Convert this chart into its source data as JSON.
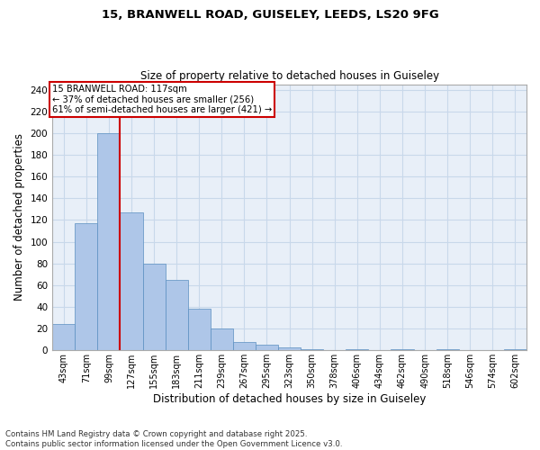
{
  "title_line1": "15, BRANWELL ROAD, GUISELEY, LEEDS, LS20 9FG",
  "title_line2": "Size of property relative to detached houses in Guiseley",
  "xlabel": "Distribution of detached houses by size in Guiseley",
  "ylabel": "Number of detached properties",
  "categories": [
    "43sqm",
    "71sqm",
    "99sqm",
    "127sqm",
    "155sqm",
    "183sqm",
    "211sqm",
    "239sqm",
    "267sqm",
    "295sqm",
    "323sqm",
    "350sqm",
    "378sqm",
    "406sqm",
    "434sqm",
    "462sqm",
    "490sqm",
    "518sqm",
    "546sqm",
    "574sqm",
    "602sqm"
  ],
  "values": [
    24,
    117,
    200,
    127,
    80,
    65,
    38,
    20,
    8,
    5,
    3,
    1,
    0,
    1,
    0,
    1,
    0,
    1,
    0,
    0,
    1
  ],
  "bar_color": "#aec6e8",
  "bar_edge_color": "#5a8fc0",
  "grid_color": "#c8d8ea",
  "background_color": "#e8eff8",
  "ylim": [
    0,
    245
  ],
  "yticks": [
    0,
    20,
    40,
    60,
    80,
    100,
    120,
    140,
    160,
    180,
    200,
    220,
    240
  ],
  "property_bin_index": 2,
  "annotation_text_line1": "15 BRANWELL ROAD: 117sqm",
  "annotation_text_line2": "← 37% of detached houses are smaller (256)",
  "annotation_text_line3": "61% of semi-detached houses are larger (421) →",
  "annotation_box_color": "#cc0000",
  "vline_color": "#cc0000",
  "footer_line1": "Contains HM Land Registry data © Crown copyright and database right 2025.",
  "footer_line2": "Contains public sector information licensed under the Open Government Licence v3.0."
}
